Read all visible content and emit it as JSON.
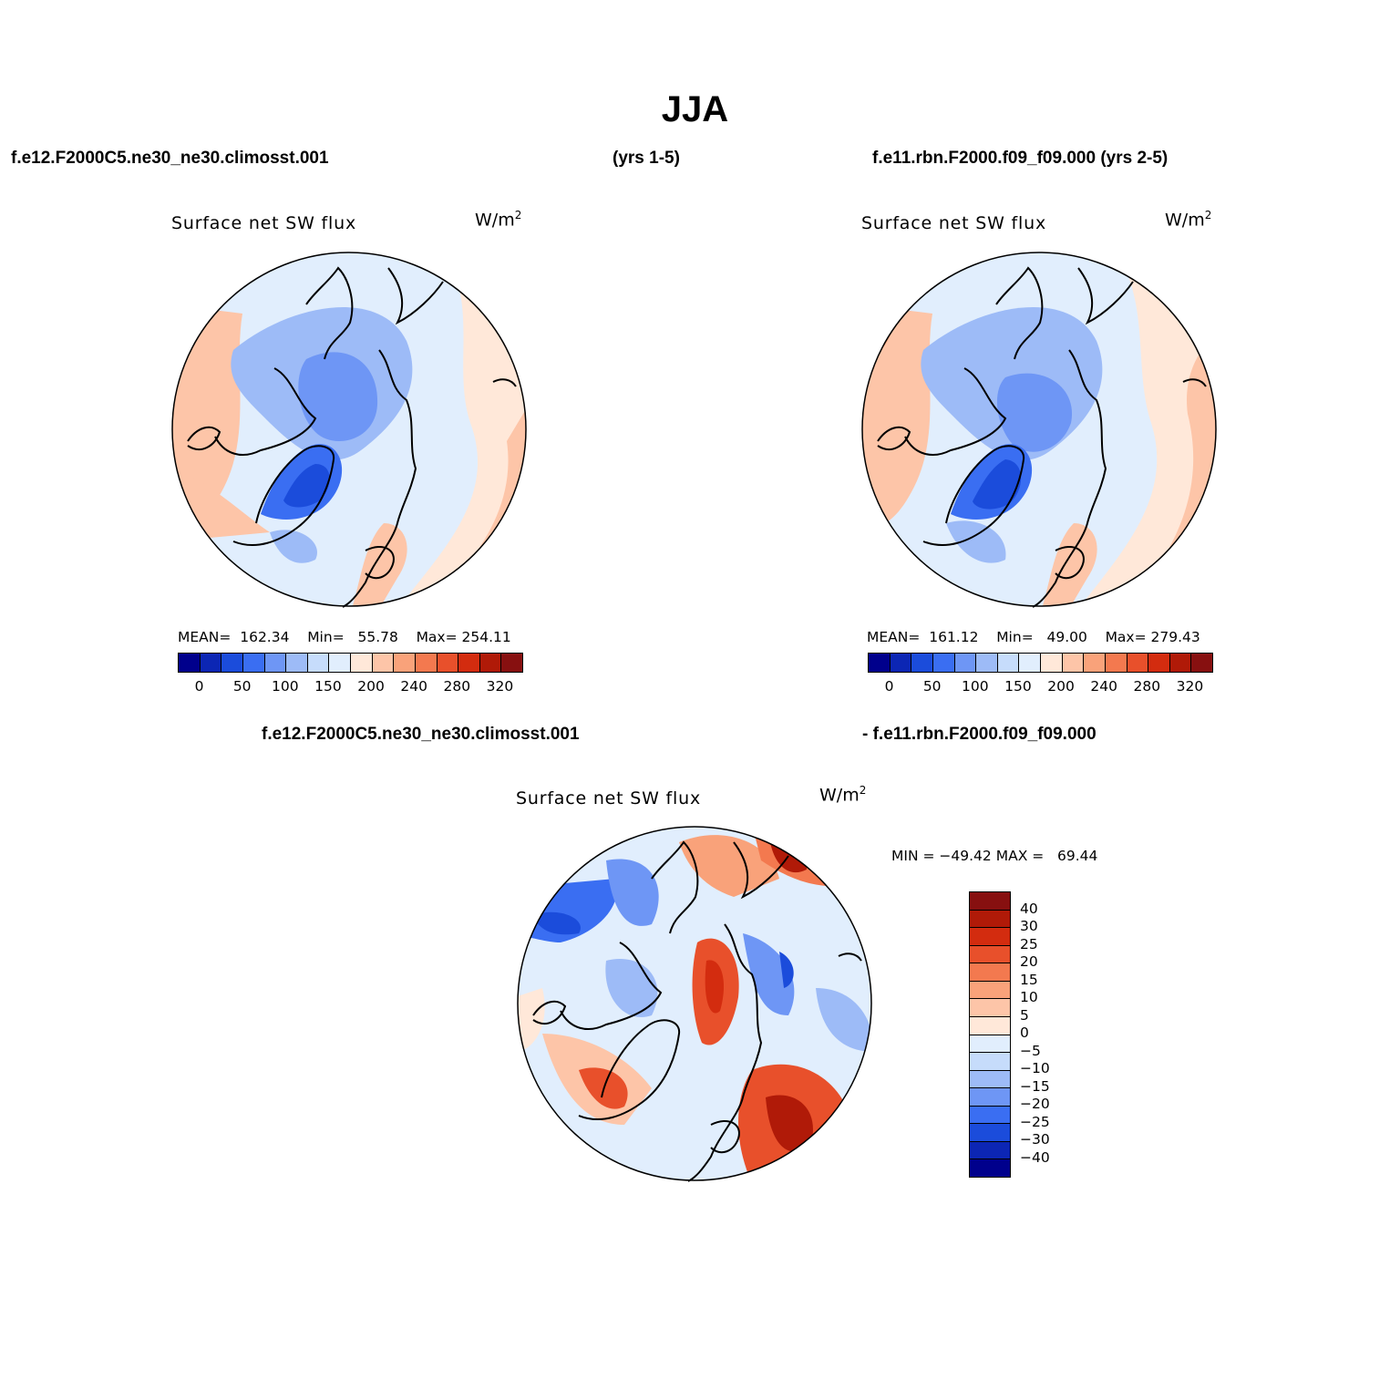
{
  "title": "JJA",
  "header": {
    "left_case": "f.e12.F2000C5.ne30_ne30.climosst.001",
    "left_years": "(yrs 1-5)",
    "right_case": "f.e11.rbn.F2000.f09_f09.000 (yrs 2-5)"
  },
  "diff_header": {
    "left": "f.e12.F2000C5.ne30_ne30.climosst.001",
    "right": "- f.e11.rbn.F2000.f09_f09.000"
  },
  "panels": [
    {
      "title": "Surface net SW flux",
      "units_base": "W/m",
      "units_sup": "2",
      "stats": {
        "mean_label": "MEAN=",
        "mean": "162.34",
        "min_label": "Min=",
        "min": "55.78",
        "max_label": "Max=",
        "max": "254.11"
      }
    },
    {
      "title": "Surface net SW flux",
      "units_base": "W/m",
      "units_sup": "2",
      "stats": {
        "mean_label": "MEAN=",
        "mean": "161.12",
        "min_label": "Min=",
        "min": "49.00",
        "max_label": "Max=",
        "max": "279.43"
      }
    },
    {
      "title": "Surface net SW flux",
      "units_base": "W/m",
      "units_sup": "2",
      "stats": {
        "min_label": "MIN =",
        "min": "−49.42",
        "max_label": "MAX =",
        "max": "69.44"
      }
    }
  ],
  "colorbar_abs": {
    "colors": [
      "#00008c",
      "#0c26b4",
      "#1b4cdb",
      "#3a6ef2",
      "#6e96f5",
      "#9dbbf7",
      "#c6dcfb",
      "#e1eefd",
      "#ffe8d9",
      "#fdc5a8",
      "#f9a27a",
      "#f3794f",
      "#e8502b",
      "#d32c0f",
      "#b01a08",
      "#871010"
    ],
    "tick_labels": [
      "0",
      "50",
      "100",
      "150",
      "200",
      "240",
      "280",
      "320"
    ]
  },
  "colorbar_diff": {
    "colors": [
      "#871010",
      "#b01a08",
      "#d32c0f",
      "#e8502b",
      "#f3794f",
      "#f9a27a",
      "#fdc5a8",
      "#ffe8d9",
      "#e1eefd",
      "#c6dcfb",
      "#9dbbf7",
      "#6e96f5",
      "#3a6ef2",
      "#1b4cdb",
      "#0c26b4",
      "#00008c"
    ],
    "tick_labels": [
      "40",
      "30",
      "25",
      "20",
      "15",
      "10",
      "5",
      "0",
      "−5",
      "−10",
      "−15",
      "−20",
      "−25",
      "−30",
      "−40"
    ]
  }
}
